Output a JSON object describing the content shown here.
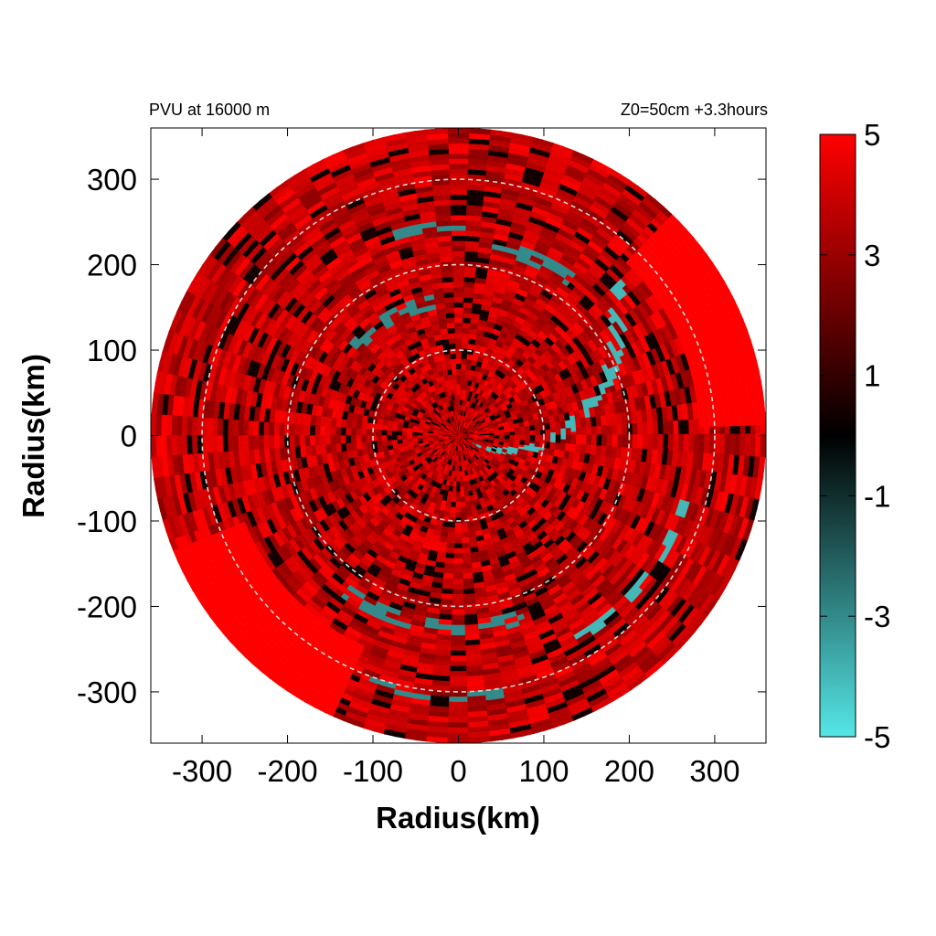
{
  "chart_data": {
    "type": "heatmap",
    "projection": "polar field on cartesian axes",
    "title_left": "PVU at 16000 m",
    "title_right": "Z0=50cm  +3.3hours",
    "xlabel": "Radius(km)",
    "ylabel": "Radius(km)",
    "xlim": [
      -360,
      360
    ],
    "ylim": [
      -360,
      360
    ],
    "xticks": [
      -300,
      -200,
      -100,
      0,
      100,
      200,
      300
    ],
    "yticks": [
      -300,
      -200,
      -100,
      0,
      100,
      200,
      300
    ],
    "domain_radius_km": 360,
    "range_rings_km": [
      100,
      200,
      300
    ],
    "range_ring_style": "dashed light gray",
    "colorbar": {
      "min": -5,
      "max": 5,
      "ticks": [
        5,
        3,
        1,
        -1,
        -3,
        -5
      ],
      "colors": {
        "max": "#ff0000",
        "mid": "#000000",
        "min": "#55e6e6"
      }
    },
    "field_description": {
      "background_value_range": [
        1,
        5
      ],
      "negative_features": [
        {
          "shape": "spiral band",
          "r_start_km": 20,
          "r_end_km": 260,
          "theta_start_deg": -30,
          "theta_end_deg": 45,
          "value": -4
        },
        {
          "shape": "arc",
          "radius_km": 275,
          "theta_start_deg": -60,
          "theta_end_deg": -15,
          "value": -4
        },
        {
          "shape": "arc",
          "radius_km": 225,
          "theta_start_deg": -125,
          "theta_end_deg": -70,
          "value": -3
        },
        {
          "shape": "arc",
          "radius_km": 225,
          "theta_start_deg": 55,
          "theta_end_deg": 80,
          "value": -3
        },
        {
          "shape": "arc",
          "radius_km": 245,
          "theta_start_deg": 88,
          "theta_end_deg": 112,
          "value": -3
        },
        {
          "shape": "arc",
          "radius_km": 160,
          "theta_start_deg": 100,
          "theta_end_deg": 140,
          "value": -3
        },
        {
          "shape": "arc",
          "radius_km": 305,
          "theta_start_deg": -110,
          "theta_end_deg": -80,
          "value": -3
        }
      ],
      "saturated_regions": [
        {
          "theta_center_deg": -135,
          "r_min_km": 270,
          "value": 5
        },
        {
          "theta_center_deg": 25,
          "r_min_km": 280,
          "value": 5
        }
      ]
    }
  }
}
